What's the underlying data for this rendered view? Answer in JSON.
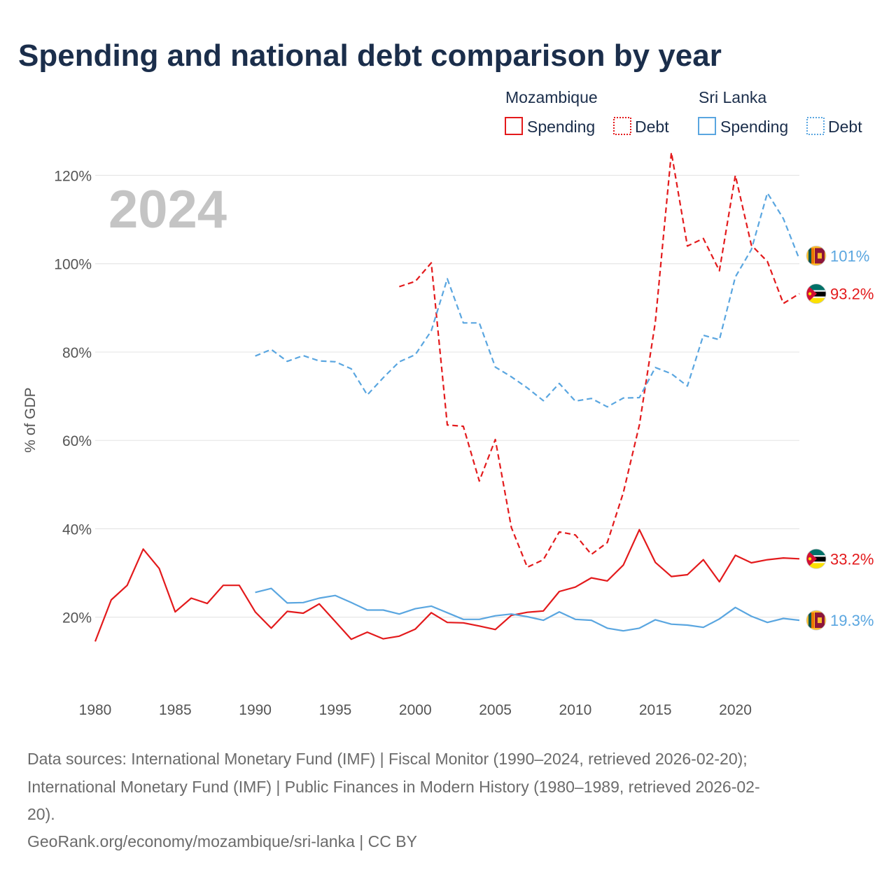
{
  "title": "Spending and national debt comparison by year",
  "year_label": "2024",
  "legend": {
    "groups": [
      {
        "country": "Mozambique",
        "color": "#e31a1c",
        "items": [
          "Spending",
          "Debt"
        ]
      },
      {
        "country": "Sri Lanka",
        "color": "#5aa6e0",
        "items": [
          "Spending",
          "Debt"
        ]
      }
    ]
  },
  "colors": {
    "mozambique": "#e31a1c",
    "sri_lanka": "#5aa6e0",
    "grid": "#e6e6e6"
  },
  "end_labels": [
    {
      "series": "Sri Lanka Debt",
      "text": "101%",
      "flag": "sri-lanka-flag-icon"
    },
    {
      "series": "Mozambique Debt",
      "text": "93.2%",
      "flag": "mozambique-flag-icon"
    },
    {
      "series": "Mozambique Spending",
      "text": "33.2%",
      "flag": "mozambique-flag-icon"
    },
    {
      "series": "Sri Lanka Spending",
      "text": "19.3%",
      "flag": "sri-lanka-flag-icon"
    }
  ],
  "source": {
    "line1": "Data sources: International Monetary Fund (IMF) | Fiscal Monitor (1990–2024, retrieved 2026-02-20);",
    "line2": "International Monetary Fund (IMF) | Public Finances in Modern History (1980–1989, retrieved 2026-02-",
    "line3": "20).",
    "line4": "GeoRank.org/economy/mozambique/sri-lanka | CC BY"
  },
  "chart_data": {
    "type": "line",
    "title": "Spending and national debt comparison by year",
    "xlabel": "",
    "ylabel": "% of GDP",
    "xlim": [
      1980,
      2024
    ],
    "ylim": [
      6,
      128
    ],
    "x_ticks": [
      1980,
      1985,
      1990,
      1995,
      2000,
      2005,
      2010,
      2015,
      2020
    ],
    "y_ticks": [
      20,
      40,
      60,
      80,
      100,
      120
    ],
    "y_tick_labels": [
      "20%",
      "40%",
      "60%",
      "80%",
      "100%",
      "120%"
    ],
    "grid": true,
    "legend_position": "top-right",
    "series": [
      {
        "name": "Mozambique Spending",
        "color": "#e31a1c",
        "dash": "solid",
        "x": [
          1980,
          1981,
          1982,
          1983,
          1984,
          1985,
          1986,
          1987,
          1988,
          1989,
          1990,
          1991,
          1992,
          1993,
          1994,
          1995,
          1996,
          1997,
          1998,
          1999,
          2000,
          2001,
          2002,
          2003,
          2004,
          2005,
          2006,
          2007,
          2008,
          2009,
          2010,
          2011,
          2012,
          2013,
          2014,
          2015,
          2016,
          2017,
          2018,
          2019,
          2020,
          2021,
          2022,
          2023,
          2024
        ],
        "values": [
          14.5,
          23.9,
          27.2,
          35.4,
          31.0,
          21.2,
          24.3,
          23.1,
          27.2,
          27.2,
          21.2,
          17.5,
          21.3,
          20.9,
          23.0,
          19.0,
          15.0,
          16.6,
          15.1,
          15.7,
          17.3,
          21.0,
          18.8,
          18.7,
          18.0,
          17.2,
          20.4,
          21.1,
          21.4,
          25.8,
          26.8,
          28.9,
          28.2,
          31.8,
          39.8,
          32.4,
          29.2,
          29.6,
          33.0,
          28.0,
          34.0,
          32.3,
          33.0,
          33.4,
          33.2
        ]
      },
      {
        "name": "Mozambique Debt",
        "color": "#e31a1c",
        "dash": "dashed",
        "x": [
          1999,
          2000,
          2001,
          2002,
          2003,
          2004,
          2005,
          2006,
          2007,
          2008,
          2009,
          2010,
          2011,
          2012,
          2013,
          2014,
          2015,
          2016,
          2017,
          2018,
          2019,
          2020,
          2021,
          2022,
          2023,
          2024
        ],
        "values": [
          94.8,
          96.0,
          100.2,
          63.5,
          63.2,
          50.8,
          60.2,
          40.3,
          31.3,
          33.0,
          39.3,
          38.6,
          34.2,
          36.9,
          48.2,
          63.5,
          86.8,
          125.2,
          104.0,
          105.7,
          98.4,
          120.0,
          104.2,
          100.5,
          91.0,
          93.2
        ]
      },
      {
        "name": "Sri Lanka Spending",
        "color": "#5aa6e0",
        "dash": "solid",
        "x": [
          1990,
          1991,
          1992,
          1993,
          1994,
          1995,
          1996,
          1997,
          1998,
          1999,
          2000,
          2001,
          2002,
          2003,
          2004,
          2005,
          2006,
          2007,
          2008,
          2009,
          2010,
          2011,
          2012,
          2013,
          2014,
          2015,
          2016,
          2017,
          2018,
          2019,
          2020,
          2021,
          2022,
          2023,
          2024
        ],
        "values": [
          25.6,
          26.5,
          23.2,
          23.3,
          24.3,
          24.9,
          23.3,
          21.6,
          21.6,
          20.7,
          21.9,
          22.5,
          21.0,
          19.5,
          19.5,
          20.3,
          20.7,
          20.1,
          19.3,
          21.2,
          19.5,
          19.3,
          17.5,
          16.9,
          17.5,
          19.4,
          18.4,
          18.2,
          17.7,
          19.6,
          22.2,
          20.2,
          18.8,
          19.7,
          19.3
        ]
      },
      {
        "name": "Sri Lanka Debt",
        "color": "#5aa6e0",
        "dash": "dashed",
        "x": [
          1990,
          1991,
          1992,
          1993,
          1994,
          1995,
          1996,
          1997,
          1998,
          1999,
          2000,
          2001,
          2002,
          2003,
          2004,
          2005,
          2006,
          2007,
          2008,
          2009,
          2010,
          2011,
          2012,
          2013,
          2014,
          2015,
          2016,
          2017,
          2018,
          2019,
          2020,
          2021,
          2022,
          2023,
          2024
        ],
        "values": [
          79.1,
          80.6,
          77.9,
          79.2,
          78.0,
          77.8,
          76.2,
          70.3,
          74.2,
          77.8,
          79.4,
          84.8,
          96.6,
          86.6,
          86.6,
          76.6,
          74.4,
          71.9,
          69.0,
          72.9,
          68.9,
          69.5,
          67.6,
          69.6,
          69.7,
          76.5,
          75.1,
          72.3,
          83.8,
          82.8,
          97.0,
          103.2,
          116.0,
          110.2,
          101.0
        ]
      }
    ]
  }
}
